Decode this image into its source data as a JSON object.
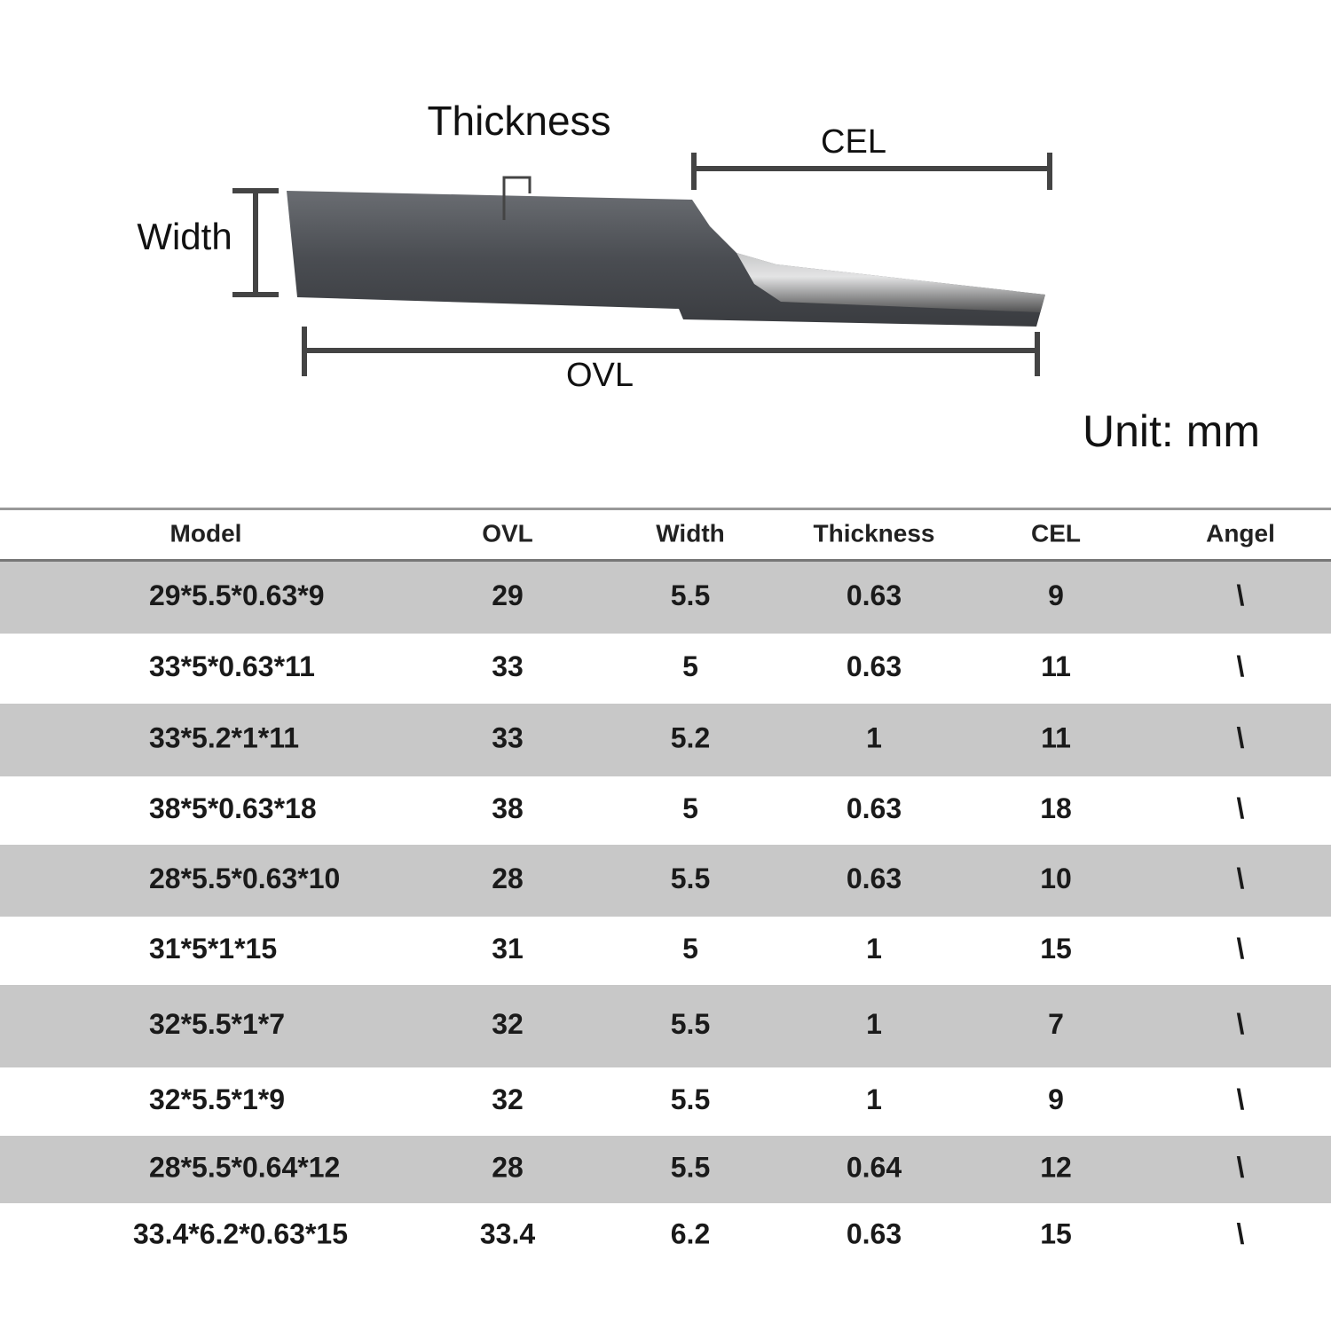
{
  "diagram": {
    "thickness_label": "Thickness",
    "cel_label": "CEL",
    "width_label": "Width",
    "ovl_label": "OVL",
    "unit": "Unit: mm"
  },
  "table": {
    "header": [
      "Model",
      "OVL",
      "Width",
      "Thickness",
      "CEL",
      "Angel"
    ],
    "rows": [
      [
        "29*5.5*0.63*9",
        29,
        5.5,
        0.63,
        9,
        "\\"
      ],
      [
        "33*5*0.63*11",
        33,
        5,
        0.63,
        11,
        "\\"
      ],
      [
        "33*5.2*1*11",
        33,
        5.2,
        1,
        11,
        "\\"
      ],
      [
        "38*5*0.63*18",
        38,
        5,
        0.63,
        18,
        "\\"
      ],
      [
        "28*5.5*0.63*10",
        28,
        5.5,
        0.63,
        10,
        "\\"
      ],
      [
        "31*5*1*15",
        31,
        5,
        1,
        15,
        "\\"
      ],
      [
        "32*5.5*1*7",
        32,
        5.5,
        1,
        7,
        "\\"
      ],
      [
        "32*5.5*1*9",
        32,
        5.5,
        1,
        9,
        "\\"
      ],
      [
        "28*5.5*0.64*12",
        28,
        5.5,
        0.64,
        12,
        "\\"
      ],
      [
        "33.4*6.2*0.63*15",
        33.4,
        6.2,
        0.63,
        15,
        "\\"
      ]
    ]
  }
}
